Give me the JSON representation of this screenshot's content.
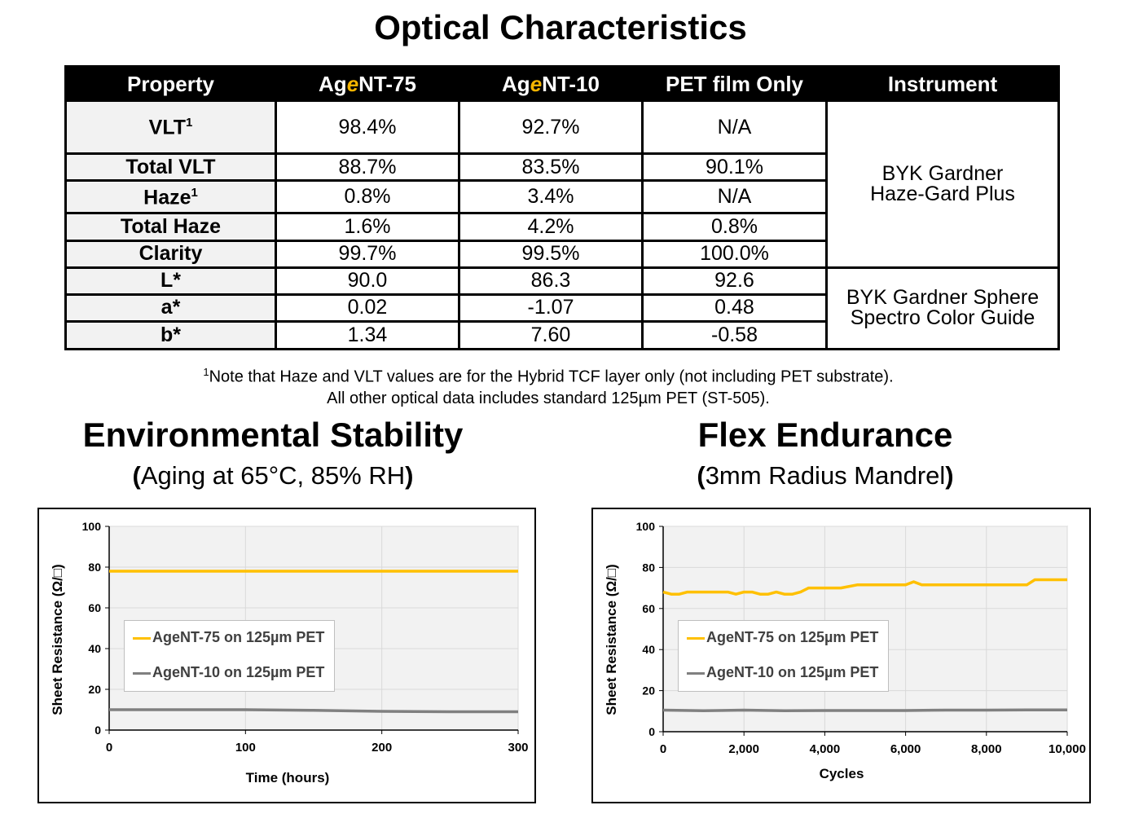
{
  "optical": {
    "title": "Optical Characteristics",
    "headers": {
      "property": "Property",
      "col1_pre": "Ag",
      "col1_e": "e",
      "col1_post": "NT-75",
      "col2_pre": "Ag",
      "col2_e": "e",
      "col2_post": "NT-10",
      "col3": "PET film Only",
      "instrument": "Instrument"
    },
    "rows": [
      {
        "property": "VLT",
        "sup": "1",
        "v1": "98.4%",
        "v2": "92.7%",
        "v3": "N/A"
      },
      {
        "property": "Total VLT",
        "sup": "",
        "v1": "88.7%",
        "v2": "83.5%",
        "v3": "90.1%"
      },
      {
        "property": "Haze",
        "sup": "1",
        "v1": "0.8%",
        "v2": "3.4%",
        "v3": "N/A"
      },
      {
        "property": "Total Haze",
        "sup": "",
        "v1": "1.6%",
        "v2": "4.2%",
        "v3": "0.8%"
      },
      {
        "property": "Clarity",
        "sup": "",
        "v1": "99.7%",
        "v2": "99.5%",
        "v3": "100.0%"
      },
      {
        "property": "L*",
        "sup": "",
        "v1": "90.0",
        "v2": "86.3",
        "v3": "92.6"
      },
      {
        "property": "a*",
        "sup": "",
        "v1": "0.02",
        "v2": "-1.07",
        "v3": "0.48"
      },
      {
        "property": "b*",
        "sup": "",
        "v1": "1.34",
        "v2": "7.60",
        "v3": "-0.58"
      }
    ],
    "instrument1": {
      "line1": "BYK Gardner",
      "line2": "Haze-Gard Plus"
    },
    "instrument2": {
      "line1": "BYK Gardner Sphere",
      "line2": "Spectro Color Guide"
    },
    "note_sup": "1",
    "note_line1": "Note that Haze and VLT values are for the Hybrid TCF layer only (not including PET substrate).",
    "note_line2": "All other optical data includes standard 125µm PET (ST-505)."
  },
  "env": {
    "title": "Environmental Stability",
    "subtitle_open": "(",
    "subtitle_text": "Aging at 65°C, 85% RH",
    "subtitle_close": ")"
  },
  "flex": {
    "title": "Flex Endurance",
    "subtitle_open": "(",
    "subtitle_text": "3mm Radius Mandrel",
    "subtitle_close": ")"
  },
  "colors": {
    "agent75": "#ffc000",
    "agent10": "#808080",
    "plot_bg": "#f2f2f2",
    "grid": "#d9d9d9"
  },
  "chart_data": [
    {
      "type": "line",
      "title": "",
      "xlabel": "Time (hours)",
      "ylabel": "Sheet Resistance (Ω/□)",
      "xlim": [
        0,
        300
      ],
      "ylim": [
        0,
        100
      ],
      "xticks": [
        "0",
        "100",
        "200",
        "300"
      ],
      "yticks": [
        "0",
        "20",
        "40",
        "60",
        "80",
        "100"
      ],
      "grid": true,
      "legend_position": "center-left",
      "series": [
        {
          "name": "AgeNT-75 on 125µm PET",
          "color": "#ffc000",
          "x": [
            0,
            50,
            100,
            150,
            200,
            250,
            300
          ],
          "y": [
            78,
            78,
            78,
            78,
            78,
            78,
            78
          ]
        },
        {
          "name": "AgeNT-10 on 125µm PET",
          "color": "#808080",
          "x": [
            0,
            50,
            100,
            150,
            200,
            250,
            300
          ],
          "y": [
            10,
            10,
            10,
            9.7,
            9.2,
            9.0,
            9.0
          ]
        }
      ]
    },
    {
      "type": "line",
      "title": "",
      "xlabel": "Cycles",
      "ylabel": "Sheet Resistance (Ω/□)",
      "xlim": [
        0,
        10000
      ],
      "ylim": [
        0,
        100
      ],
      "xticks": [
        "0",
        "2,000",
        "4,000",
        "6,000",
        "8,000",
        "10,000"
      ],
      "yticks": [
        "0",
        "20",
        "40",
        "60",
        "80",
        "100"
      ],
      "grid": true,
      "legend_position": "center-left",
      "series": [
        {
          "name": "AgeNT-75 on 125µm PET",
          "color": "#ffc000",
          "x": [
            0,
            200,
            400,
            600,
            800,
            1000,
            1200,
            1400,
            1600,
            1800,
            2000,
            2200,
            2400,
            2600,
            2800,
            3000,
            3200,
            3400,
            3600,
            3800,
            4000,
            4400,
            4800,
            5200,
            5600,
            6000,
            6200,
            6400,
            6800,
            7200,
            7600,
            8000,
            8400,
            8800,
            9000,
            9200,
            9400,
            9800,
            10000
          ],
          "y": [
            68,
            67,
            67,
            68,
            68,
            68,
            68,
            68,
            68,
            67,
            68,
            68,
            67,
            67,
            68,
            67,
            67,
            68,
            70,
            70,
            70,
            70,
            71.5,
            71.5,
            71.5,
            71.5,
            73,
            71.5,
            71.5,
            71.5,
            71.5,
            71.5,
            71.5,
            71.5,
            71.5,
            74,
            74,
            74,
            74
          ]
        },
        {
          "name": "AgeNT-10 on 125µm PET",
          "color": "#808080",
          "x": [
            0,
            1000,
            2000,
            3000,
            4000,
            5000,
            6000,
            7000,
            8000,
            9000,
            10000
          ],
          "y": [
            10.5,
            10.2,
            10.5,
            10.2,
            10.3,
            10.3,
            10.3,
            10.5,
            10.5,
            10.6,
            10.6
          ]
        }
      ]
    }
  ]
}
